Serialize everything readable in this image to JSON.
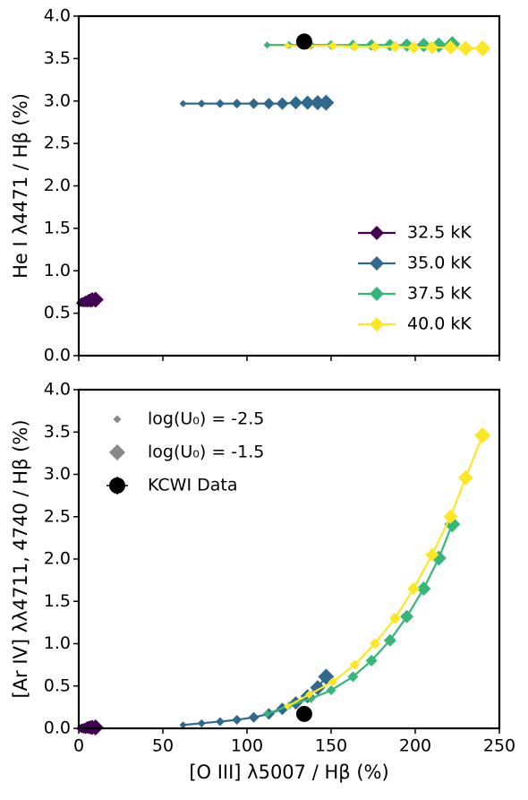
{
  "chart_data": [
    {
      "type": "line",
      "ylabel": "He I λ4471 / Hβ (%)",
      "xlim": [
        0,
        250
      ],
      "xticks": [
        0,
        50,
        100,
        150,
        200,
        250
      ],
      "ylim": [
        0,
        4
      ],
      "yticks": [
        {
          "value": 0,
          "label": "0.0"
        },
        0.5,
        {
          "value": 1,
          "label": "1.0"
        },
        1.5,
        {
          "value": 2,
          "label": "2.0"
        },
        2.5,
        {
          "value": 3,
          "label": "3.0"
        },
        3.5,
        {
          "value": 4,
          "label": "4.0"
        }
      ],
      "legend": "lower right",
      "series": [
        {
          "name": "32.5 kK",
          "color": "#440154",
          "x": [
            0.5,
            1,
            1.5,
            2,
            3,
            4,
            5,
            6,
            7,
            8,
            10
          ],
          "values": [
            0.62,
            0.62,
            0.63,
            0.63,
            0.63,
            0.64,
            0.64,
            0.65,
            0.65,
            0.66,
            0.66
          ]
        },
        {
          "name": "35.0 kK",
          "color": "#31688e",
          "x": [
            62,
            73,
            84,
            94,
            104,
            113,
            121,
            129,
            136,
            142,
            147
          ],
          "values": [
            2.97,
            2.97,
            2.97,
            2.97,
            2.97,
            2.97,
            2.97,
            2.98,
            2.98,
            2.98,
            2.98
          ]
        },
        {
          "name": "37.5 kK",
          "color": "#35b779",
          "x": [
            112,
            125,
            138,
            150,
            163,
            174,
            185,
            195,
            205,
            214,
            222
          ],
          "values": [
            3.66,
            3.66,
            3.66,
            3.66,
            3.66,
            3.66,
            3.66,
            3.66,
            3.66,
            3.66,
            3.67
          ]
        },
        {
          "name": "40.0 kK",
          "color": "#fde725",
          "x": [
            124,
            137,
            151,
            164,
            176,
            188,
            199,
            210,
            221,
            230,
            240
          ],
          "values": [
            3.65,
            3.65,
            3.65,
            3.64,
            3.64,
            3.64,
            3.63,
            3.63,
            3.63,
            3.62,
            3.62
          ]
        }
      ],
      "observed": {
        "x": 134,
        "y": 3.7
      }
    },
    {
      "type": "line",
      "ylabel": "[Ar IV] λλ4711, 4740 / Hβ (%)",
      "xlabel": "[O III] λ5007 / Hβ (%)",
      "xlim": [
        0,
        250
      ],
      "xticks": [
        0,
        50,
        100,
        150,
        200,
        250
      ],
      "ylim": [
        0,
        4
      ],
      "yticks": [
        {
          "value": 0,
          "label": "0.0"
        },
        0.5,
        {
          "value": 1,
          "label": "1.0"
        },
        1.5,
        {
          "value": 2,
          "label": "2.0"
        },
        2.5,
        {
          "value": 3,
          "label": "3.0"
        },
        3.5,
        {
          "value": 4,
          "label": "4.0"
        }
      ],
      "legend": "upper left",
      "legend_labels": [
        "log(U₀) = -2.5",
        "log(U₀) = -1.5",
        "KCWI Data"
      ],
      "series": [
        {
          "color": "#440154",
          "x": [
            0.5,
            1,
            1.5,
            2,
            3,
            4,
            5,
            6,
            7,
            8,
            10
          ],
          "values": [
            0,
            0,
            0,
            0,
            0,
            0,
            0.01,
            0.01,
            0.01,
            0.01,
            0.01
          ]
        },
        {
          "color": "#31688e",
          "x": [
            62,
            73,
            84,
            94,
            104,
            113,
            121,
            129,
            136,
            142,
            147
          ],
          "values": [
            0.04,
            0.06,
            0.08,
            0.1,
            0.13,
            0.17,
            0.23,
            0.3,
            0.38,
            0.48,
            0.61
          ]
        },
        {
          "color": "#35b779",
          "x": [
            112,
            125,
            138,
            150,
            163,
            174,
            185,
            195,
            205,
            214,
            222
          ],
          "values": [
            0.17,
            0.27,
            0.35,
            0.45,
            0.61,
            0.8,
            1.04,
            1.32,
            1.65,
            2.01,
            2.41
          ]
        },
        {
          "color": "#fde725",
          "x": [
            124,
            137,
            151,
            164,
            176,
            188,
            199,
            210,
            221,
            230,
            240
          ],
          "values": [
            0.26,
            0.4,
            0.55,
            0.75,
            1.0,
            1.3,
            1.65,
            2.05,
            2.5,
            2.96,
            3.46
          ]
        }
      ],
      "observed": {
        "x": 134,
        "y": 0.17
      }
    }
  ]
}
